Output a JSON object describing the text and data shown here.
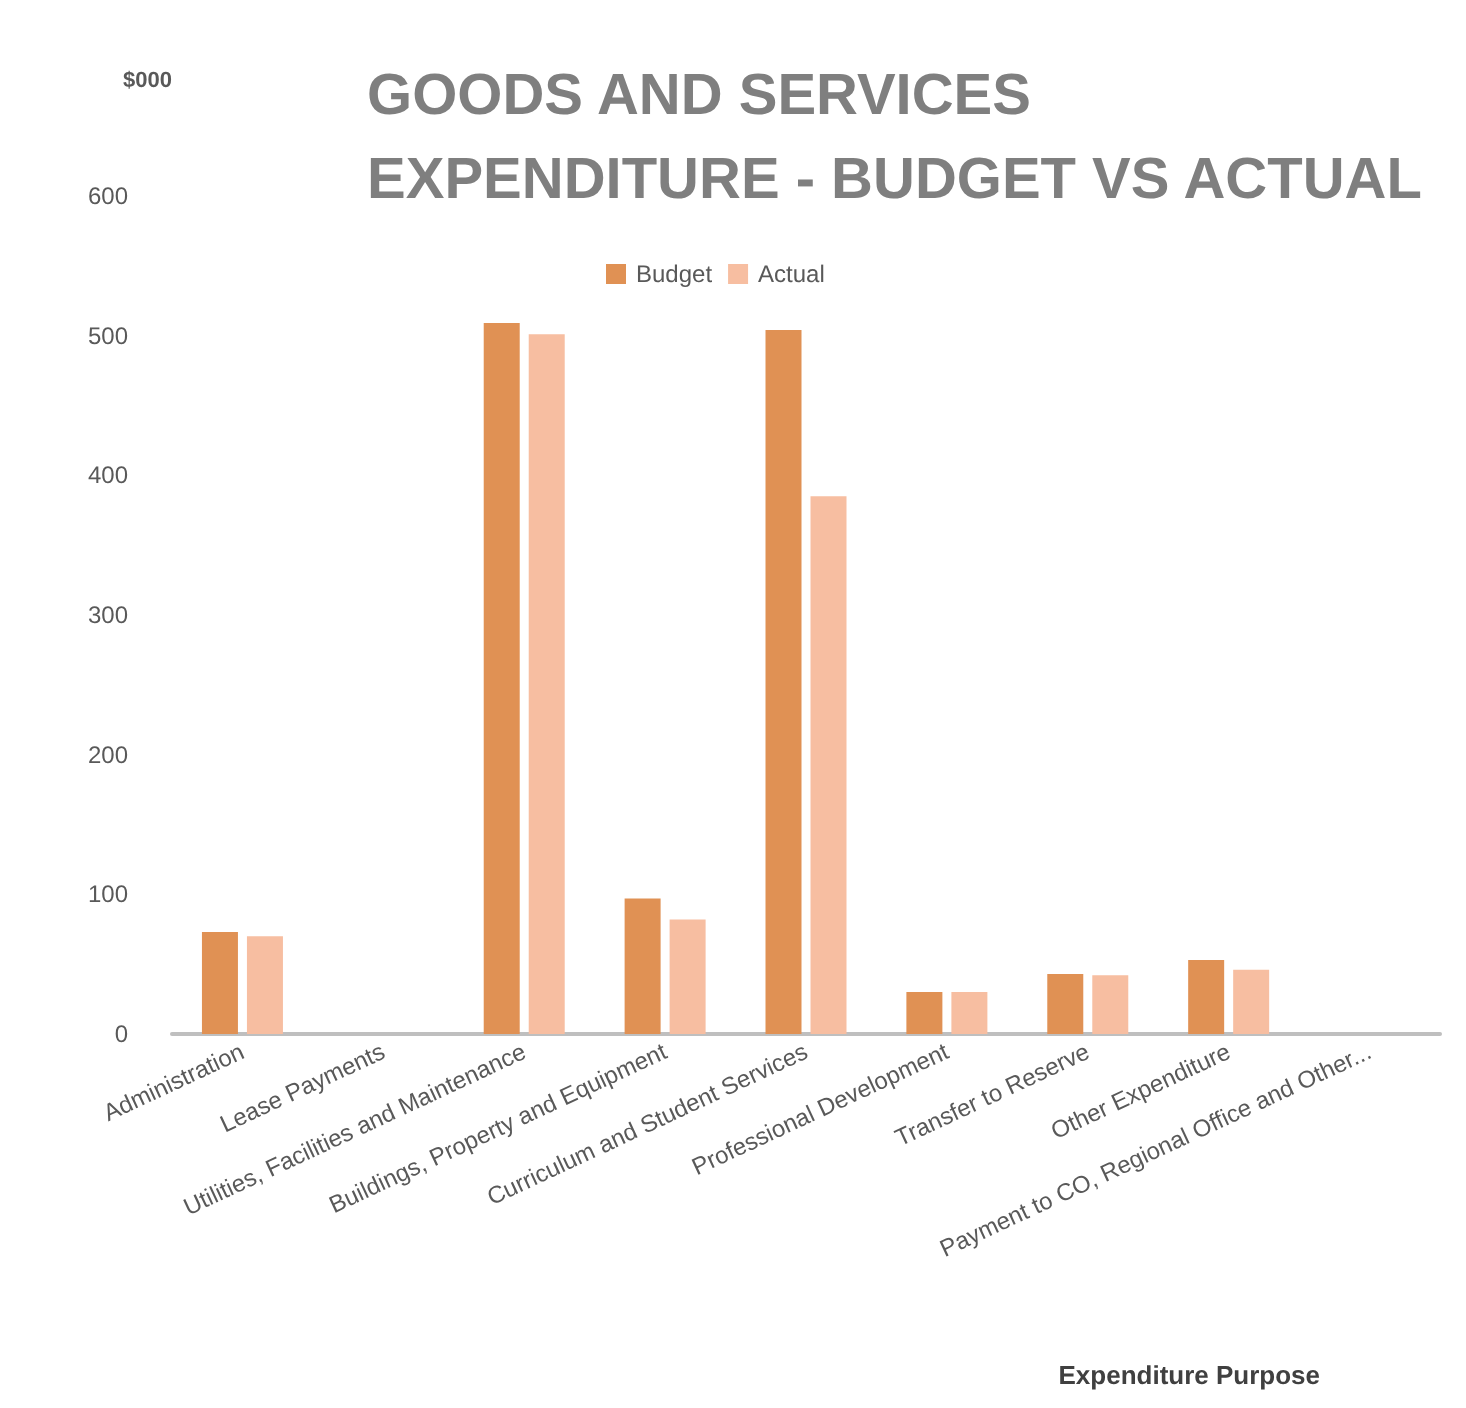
{
  "chart_data": {
    "type": "bar",
    "title": "GOODS AND SERVICES\nEXPENDITURE - BUDGET VS ACTUAL",
    "ylabel": "$000",
    "xlabel": "Expenditure Purpose",
    "categories": [
      "Administration",
      "Lease Payments",
      "Utilities, Facilities and Maintenance",
      "Buildings, Property and Equipment",
      "Curriculum and Student Services",
      "Professional Development",
      "Transfer to Reserve",
      "Other Expenditure",
      "Payment to CO, Regional Office and Other..."
    ],
    "series": [
      {
        "name": "Budget",
        "color": "#e09154",
        "values": [
          73,
          0,
          509,
          97,
          504,
          30,
          43,
          53,
          0
        ]
      },
      {
        "name": "Actual",
        "color": "#f7bea1",
        "values": [
          70,
          0,
          501,
          82,
          385,
          30,
          42,
          46,
          0
        ]
      }
    ],
    "ylim": [
      0,
      600
    ],
    "yticks": [
      0,
      100,
      200,
      300,
      400,
      500,
      600
    ],
    "grid": false,
    "legend": "top"
  }
}
